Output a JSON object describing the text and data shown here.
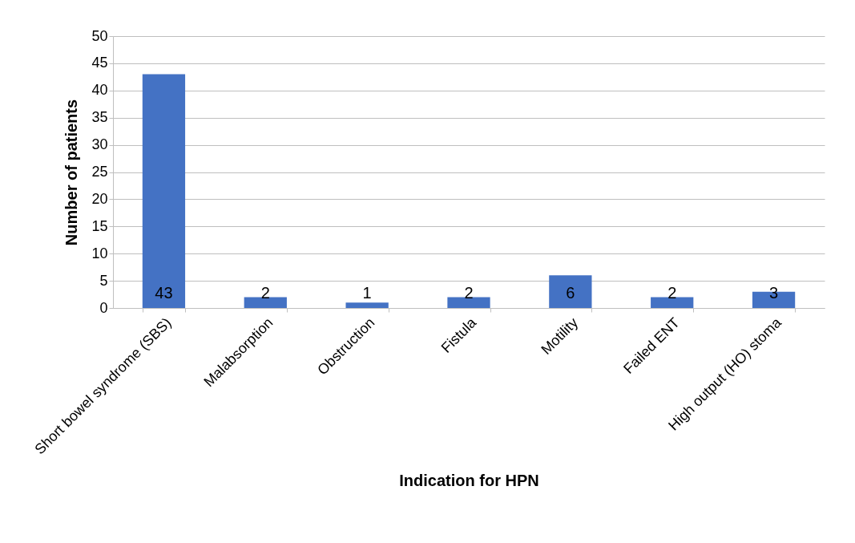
{
  "chart_data": {
    "type": "bar",
    "xlabel": "Indication for HPN",
    "ylabel": "Number of patients",
    "categories": [
      "Short bowel syndrome (SBS)",
      "Malabsorption",
      "Obstruction",
      "Fistula",
      "Motility",
      "Failed ENT",
      "High output (HO) stoma"
    ],
    "values": [
      43,
      2,
      1,
      2,
      6,
      2,
      3
    ],
    "color": "#4472c4",
    "ylim": [
      0,
      50
    ],
    "yticks": [
      0,
      5,
      10,
      15,
      20,
      25,
      30,
      35,
      40,
      45,
      50
    ],
    "grid": "y",
    "data_labels": true
  }
}
